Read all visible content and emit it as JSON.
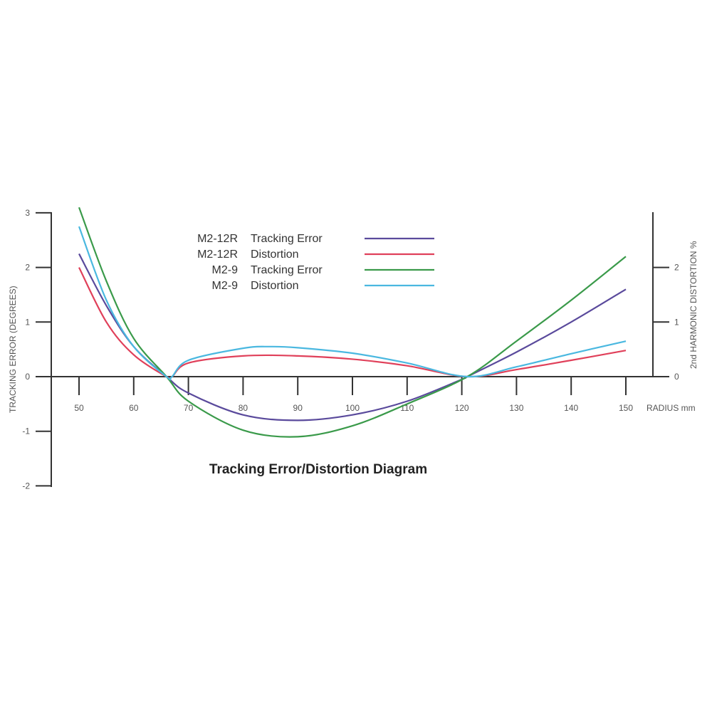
{
  "chart_data": {
    "type": "line",
    "title": "Tracking Error/Distortion Diagram",
    "xlabel": "RADIUS mm",
    "ylabel": "TRACKING ERROR (DEGREES)",
    "y2label": "2nd HARMONIC DISTORTION %",
    "xlim": [
      50,
      150
    ],
    "ylim": [
      -2,
      3
    ],
    "y2lim": [
      0,
      2
    ],
    "xticks": [
      "50",
      "60",
      "70",
      "80",
      "90",
      "100",
      "110",
      "120",
      "130",
      "140",
      "150"
    ],
    "yticks": [
      "3",
      "2",
      "1",
      "0",
      "-1",
      "-2"
    ],
    "y2ticks": [
      "2",
      "1",
      "0"
    ],
    "grid": false,
    "legend_position": "top-center",
    "series": [
      {
        "model": "M2-12R",
        "name": "Tracking Error",
        "color": "#5a4a9c",
        "x": [
          50,
          55,
          60,
          66,
          70,
          80,
          90,
          100,
          110,
          120,
          121,
          130,
          140,
          150
        ],
        "y": [
          2.25,
          1.3,
          0.55,
          0,
          -0.3,
          -0.7,
          -0.8,
          -0.7,
          -0.45,
          -0.05,
          0,
          0.45,
          1.0,
          1.6
        ]
      },
      {
        "model": "M2-12R",
        "name": "Distortion",
        "color": "#e0405a",
        "x": [
          50,
          55,
          60,
          66,
          67,
          70,
          80,
          90,
          100,
          110,
          121,
          130,
          140,
          150
        ],
        "y": [
          2.0,
          1.0,
          0.4,
          0,
          0,
          0.25,
          0.38,
          0.38,
          0.32,
          0.2,
          0,
          0.13,
          0.3,
          0.48
        ]
      },
      {
        "model": "M2-9",
        "name": "Tracking Error",
        "color": "#3a9a4a",
        "x": [
          50,
          55,
          60,
          66,
          70,
          80,
          90,
          100,
          110,
          121,
          130,
          140,
          150
        ],
        "y": [
          3.1,
          1.75,
          0.7,
          0,
          -0.45,
          -0.98,
          -1.1,
          -0.9,
          -0.5,
          0,
          0.65,
          1.4,
          2.2
        ]
      },
      {
        "model": "M2-9",
        "name": "Distortion",
        "color": "#4ab8e0",
        "x": [
          50,
          55,
          60,
          66,
          67,
          70,
          80,
          85,
          90,
          100,
          110,
          121,
          130,
          140,
          150
        ],
        "y": [
          2.75,
          1.4,
          0.55,
          0,
          0,
          0.3,
          0.52,
          0.55,
          0.53,
          0.43,
          0.25,
          0,
          0.18,
          0.42,
          0.65
        ]
      }
    ]
  }
}
